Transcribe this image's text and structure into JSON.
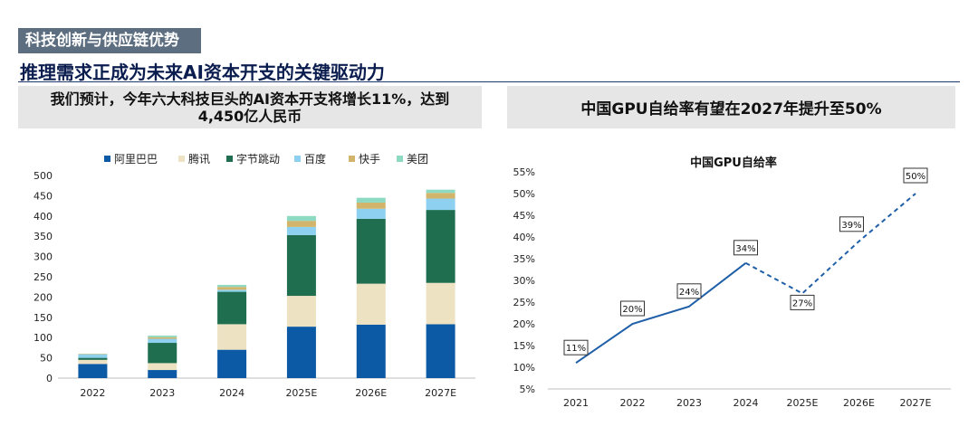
{
  "header": {
    "section_tag": "科技创新与供应链优势",
    "main_title": "推理需求正成为未来AI资本开支的关键驱动力"
  },
  "left_panel": {
    "title": "我们预计，今年六大科技巨头的AI资本开支将增长11%，达到4,450亿人民币"
  },
  "right_panel": {
    "title": "中国GPU自给率有望在2027年提升至50%"
  },
  "colors": {
    "alibaba": "#0c5aa6",
    "tencent": "#ede2c2",
    "bytedance": "#1f6e4f",
    "baidu": "#8dd0ef",
    "kuaishou": "#d2b56a",
    "meituan": "#8ed9c2",
    "line": "#1f5fa8"
  },
  "chart_data": [
    {
      "type": "bar",
      "stacked": true,
      "categories": [
        "2022",
        "2023",
        "2024",
        "2025E",
        "2026E",
        "2027E"
      ],
      "series": [
        {
          "name": "阿里巴巴",
          "color_key": "alibaba",
          "values": [
            35,
            20,
            70,
            127,
            132,
            133
          ]
        },
        {
          "name": "腾讯",
          "color_key": "tencent",
          "values": [
            10,
            17,
            63,
            76,
            101,
            102
          ]
        },
        {
          "name": "字节跳动",
          "color_key": "bytedance",
          "values": [
            5,
            50,
            80,
            150,
            160,
            180
          ]
        },
        {
          "name": "百度",
          "color_key": "baidu",
          "values": [
            8,
            10,
            5,
            20,
            25,
            28
          ]
        },
        {
          "name": "快手",
          "color_key": "kuaishou",
          "values": [
            1,
            4,
            7,
            15,
            15,
            14
          ]
        },
        {
          "name": "美团",
          "color_key": "meituan",
          "values": [
            1,
            4,
            5,
            12,
            12,
            8
          ]
        }
      ],
      "yticks": [
        "0",
        "50",
        "100",
        "150",
        "200",
        "250",
        "300",
        "350",
        "400",
        "450",
        "500"
      ],
      "ylim": [
        0,
        500
      ],
      "legend_position": "top"
    },
    {
      "type": "line",
      "title": "中国GPU自给率",
      "categories": [
        "2021",
        "2022",
        "2023",
        "2024",
        "2025E",
        "2026E",
        "2027E"
      ],
      "values": [
        11,
        20,
        24,
        34,
        27,
        39,
        50
      ],
      "labels": [
        "11%",
        "20%",
        "24%",
        "34%",
        "27%",
        "39%",
        "50%"
      ],
      "actual_count": 4,
      "yticks": [
        "5%",
        "10%",
        "15%",
        "20%",
        "25%",
        "30%",
        "35%",
        "40%",
        "45%",
        "50%",
        "55%"
      ],
      "ylim": [
        5,
        55
      ]
    }
  ]
}
